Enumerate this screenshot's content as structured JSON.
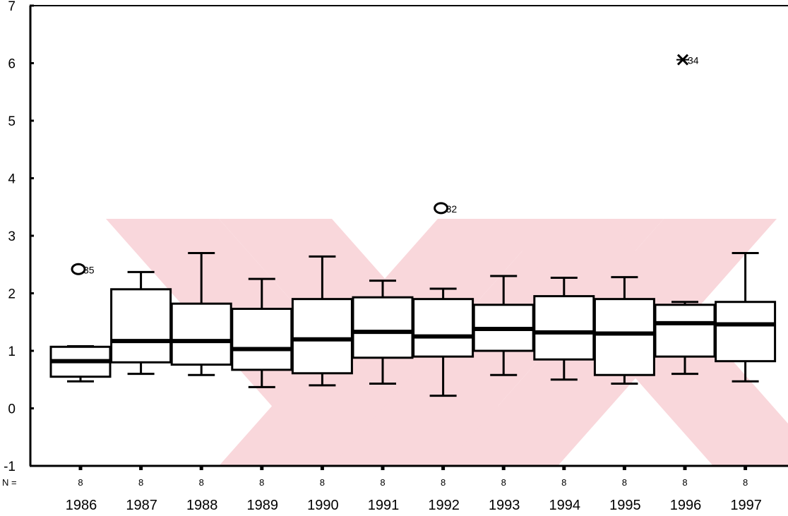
{
  "chart_data": {
    "type": "boxplot",
    "title": "",
    "xlabel": "",
    "ylabel": "",
    "ylim": [
      -1,
      7
    ],
    "yticks": [
      -1,
      0,
      1,
      2,
      3,
      4,
      5,
      6,
      7
    ],
    "n_label": "N =",
    "categories": [
      "1986",
      "1987",
      "1988",
      "1989",
      "1990",
      "1991",
      "1992",
      "1993",
      "1994",
      "1995",
      "1996",
      "1997"
    ],
    "n": [
      "8",
      "8",
      "8",
      "8",
      "8",
      "8",
      "8",
      "8",
      "8",
      "8",
      "8",
      "8"
    ],
    "boxes": [
      {
        "min": 0.47,
        "q1": 0.55,
        "median": 0.82,
        "q3": 1.07,
        "max": 1.08
      },
      {
        "min": 0.6,
        "q1": 0.8,
        "median": 1.17,
        "q3": 2.07,
        "max": 2.37
      },
      {
        "min": 0.58,
        "q1": 0.76,
        "median": 1.17,
        "q3": 1.82,
        "max": 2.7
      },
      {
        "min": 0.37,
        "q1": 0.67,
        "median": 1.03,
        "q3": 1.73,
        "max": 2.25
      },
      {
        "min": 0.4,
        "q1": 0.61,
        "median": 1.2,
        "q3": 1.9,
        "max": 2.64
      },
      {
        "min": 0.43,
        "q1": 0.88,
        "median": 1.33,
        "q3": 1.93,
        "max": 2.22
      },
      {
        "min": 0.22,
        "q1": 0.9,
        "median": 1.25,
        "q3": 1.9,
        "max": 2.08
      },
      {
        "min": 0.58,
        "q1": 1.0,
        "median": 1.38,
        "q3": 1.8,
        "max": 2.3
      },
      {
        "min": 0.5,
        "q1": 0.85,
        "median": 1.32,
        "q3": 1.95,
        "max": 2.27
      },
      {
        "min": 0.43,
        "q1": 0.58,
        "median": 1.3,
        "q3": 1.9,
        "max": 2.28
      },
      {
        "min": 0.6,
        "q1": 0.9,
        "median": 1.48,
        "q3": 1.8,
        "max": 1.85
      },
      {
        "min": 0.47,
        "q1": 0.82,
        "median": 1.46,
        "q3": 1.85,
        "max": 2.7
      }
    ],
    "outliers": [
      {
        "category": "1986",
        "value": 2.42,
        "marker": "circle",
        "label": "35"
      },
      {
        "category": "1992",
        "value": 3.48,
        "marker": "circle",
        "label": "32"
      },
      {
        "category": "1996",
        "value": 6.06,
        "marker": "star",
        "label": "34"
      }
    ],
    "grid": false,
    "legend": "none"
  },
  "colors": {
    "axis": "#000000",
    "box_fill": "#ffffff",
    "box_stroke": "#000000",
    "watermark": "#f7c6cc"
  }
}
